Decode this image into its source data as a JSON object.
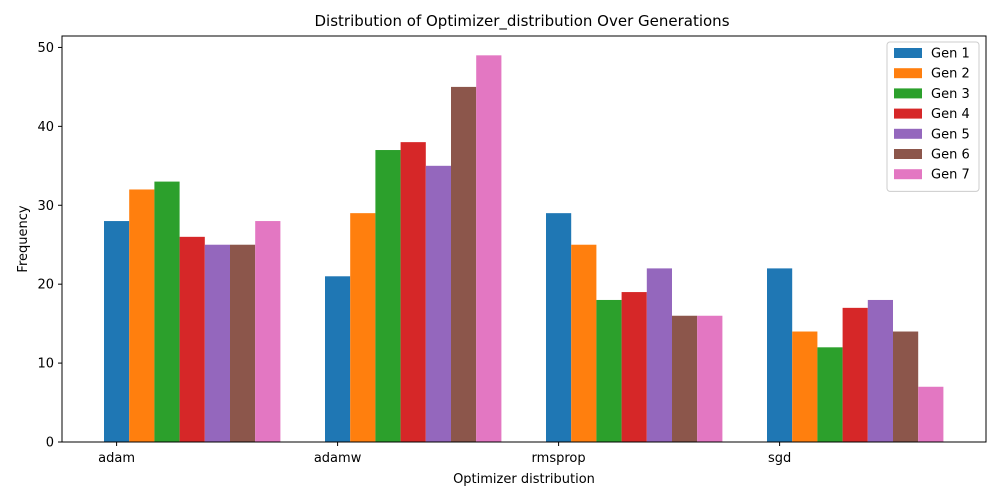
{
  "chart_data": {
    "type": "bar",
    "title": "Distribution of Optimizer_distribution Over Generations",
    "xlabel": "Optimizer distribution",
    "ylabel": "Frequency",
    "categories": [
      "adam",
      "adamw",
      "rmsprop",
      "sgd"
    ],
    "ylim": [
      0,
      51.45
    ],
    "yticks": [
      0,
      10,
      20,
      30,
      40,
      50
    ],
    "grid": false,
    "legend_position": "top-right",
    "series": [
      {
        "name": "Gen 1",
        "color": "#1f77b4",
        "values": [
          28,
          21,
          29,
          22
        ]
      },
      {
        "name": "Gen 2",
        "color": "#ff7f0e",
        "values": [
          32,
          29,
          25,
          14
        ]
      },
      {
        "name": "Gen 3",
        "color": "#2ca02c",
        "values": [
          33,
          37,
          18,
          12
        ]
      },
      {
        "name": "Gen 4",
        "color": "#d62728",
        "values": [
          26,
          38,
          19,
          17
        ]
      },
      {
        "name": "Gen 5",
        "color": "#9467bd",
        "values": [
          25,
          35,
          22,
          18
        ]
      },
      {
        "name": "Gen 6",
        "color": "#8c564b",
        "values": [
          25,
          45,
          16,
          14
        ]
      },
      {
        "name": "Gen 7",
        "color": "#e377c2",
        "values": [
          28,
          49,
          16,
          7
        ]
      }
    ]
  }
}
